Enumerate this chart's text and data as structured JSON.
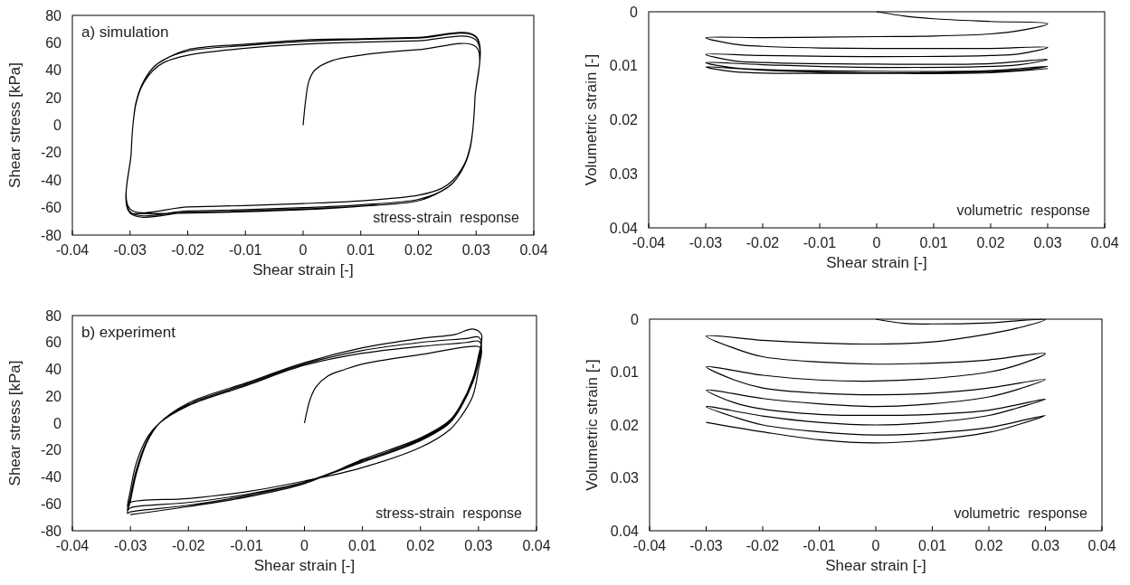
{
  "chart_data": [
    {
      "type": "line",
      "xlabel": "Shear strain [-]",
      "ylabel": "Shear stress [kPa]",
      "annotations": [
        "a) simulation",
        "stress-strain  response"
      ],
      "xlim": [
        -0.04,
        0.04
      ],
      "xticks": [
        -0.04,
        -0.03,
        -0.02,
        -0.01,
        0,
        0.01,
        0.02,
        0.03,
        0.04
      ],
      "ylim": [
        -80,
        80
      ],
      "yticks": [
        -80,
        -60,
        -40,
        -20,
        0,
        20,
        40,
        60,
        80
      ],
      "series": [
        {
          "color": "#000000",
          "x": [
            0,
            0.0005,
            0.001,
            0.002,
            0.005,
            0.01,
            0.02,
            0.03,
            0.0298,
            0.0295,
            0.029,
            0.028,
            0.026,
            0.024,
            0.02,
            0.01,
            0,
            -0.01,
            -0.02,
            -0.03,
            -0.0298,
            -0.0295,
            -0.029,
            -0.028,
            -0.026,
            -0.024,
            -0.02,
            -0.01,
            0,
            0.01,
            0.02,
            0.03,
            0.0298,
            0.0295,
            0.029,
            0.028,
            0.026,
            0.024,
            0.02,
            0.01,
            0,
            -0.01,
            -0.02,
            -0.03,
            -0.0298,
            -0.0295,
            -0.029,
            -0.028,
            -0.026,
            -0.024,
            -0.02,
            -0.01,
            0,
            0.01,
            0.02,
            0.03,
            0.0298,
            0.0295,
            0.029,
            0.028,
            0.026,
            0.024,
            0.02,
            0.01,
            0,
            -0.01,
            -0.02,
            -0.03,
            -0.0298,
            -0.0295,
            -0.029,
            -0.028,
            -0.026,
            -0.024,
            -0.02,
            -0.01,
            0,
            0.01,
            0.02,
            0.03,
            0.0298,
            0.0295,
            0.029,
            0.028,
            0.026,
            0.024,
            0.02,
            0.01,
            0,
            -0.01,
            -0.02,
            -0.03
          ],
          "values": [
            0,
            20,
            32,
            40,
            47,
            51,
            55,
            57,
            20,
            0,
            -15,
            -28,
            -40,
            -46,
            -51,
            -55,
            -57,
            -58.5,
            -59.5,
            -61,
            -20,
            0,
            15,
            28,
            40,
            46,
            51,
            56,
            59,
            60.5,
            61.5,
            62,
            20,
            0,
            -16,
            -29,
            -42,
            -48,
            -54,
            -58,
            -60,
            -61.5,
            -62.5,
            -63,
            -20,
            0,
            16,
            29,
            42,
            48,
            54,
            58,
            61,
            62.5,
            63.5,
            64,
            20,
            0,
            -16,
            -29,
            -42,
            -48,
            -55,
            -59,
            -61,
            -62.5,
            -63.5,
            -64,
            -20,
            0,
            16,
            29,
            42,
            48,
            55,
            59,
            62,
            63,
            64,
            64.5,
            20,
            0,
            -16,
            -29,
            -42,
            -48,
            -55,
            -59,
            -61.5,
            -63,
            -64,
            -64.5
          ]
        }
      ]
    },
    {
      "type": "line",
      "xlabel": "Shear strain [-]",
      "ylabel": "Volumetric strain [-]",
      "annotations": [
        "volumetric  response"
      ],
      "xlim": [
        -0.04,
        0.04
      ],
      "xticks": [
        -0.04,
        -0.03,
        -0.02,
        -0.01,
        0,
        0.01,
        0.02,
        0.03,
        0.04
      ],
      "ylim": [
        0.04,
        0
      ],
      "yticks": [
        0,
        0.01,
        0.02,
        0.03,
        0.04
      ],
      "series": [
        {
          "color": "#000000",
          "x": [
            0,
            0.005,
            0.01,
            0.02,
            0.03,
            0.025,
            0.02,
            0.01,
            0,
            -0.01,
            -0.02,
            -0.03,
            -0.025,
            -0.02,
            -0.01,
            0,
            0.01,
            0.02,
            0.03,
            0.025,
            0.02,
            0,
            -0.02,
            -0.03,
            -0.025,
            -0.02,
            0,
            0.02,
            0.03,
            0.025,
            0,
            -0.02,
            -0.03,
            -0.025,
            0,
            0.02,
            0.03,
            0.025,
            0,
            -0.02,
            -0.03,
            -0.025,
            0,
            0.02,
            0.03
          ],
          "values": [
            0,
            0.0008,
            0.0013,
            0.0018,
            0.0022,
            0.0035,
            0.0041,
            0.0045,
            0.0046,
            0.0047,
            0.0048,
            0.0048,
            0.006,
            0.0064,
            0.0067,
            0.0068,
            0.0068,
            0.0068,
            0.0066,
            0.0078,
            0.0081,
            0.0083,
            0.0081,
            0.0079,
            0.0091,
            0.0094,
            0.0097,
            0.0096,
            0.0088,
            0.0098,
            0.0103,
            0.0098,
            0.0094,
            0.0104,
            0.011,
            0.0109,
            0.0101,
            0.0108,
            0.0113,
            0.0108,
            0.0102,
            0.0111,
            0.0114,
            0.0113,
            0.0105
          ]
        }
      ]
    },
    {
      "type": "line",
      "xlabel": "Shear strain [-]",
      "ylabel": "Shear stress [kPa]",
      "annotations": [
        "b) experiment",
        "stress-strain  response"
      ],
      "xlim": [
        -0.04,
        0.04
      ],
      "xticks": [
        -0.04,
        -0.03,
        -0.02,
        -0.01,
        0,
        0.01,
        0.02,
        0.03,
        0.04
      ],
      "ylim": [
        -80,
        80
      ],
      "yticks": [
        -80,
        -60,
        -40,
        -20,
        0,
        20,
        40,
        60,
        80
      ],
      "series": [
        {
          "color": "#000000",
          "x": [
            0,
            0.0005,
            0.001,
            0.002,
            0.004,
            0.007,
            0.01,
            0.02,
            0.03,
            0.0305,
            0.03,
            0.029,
            0.027,
            0.025,
            0.02,
            0.01,
            0,
            -0.01,
            -0.02,
            -0.03,
            -0.0305,
            -0.03,
            -0.029,
            -0.027,
            -0.025,
            -0.02,
            -0.01,
            0,
            0.01,
            0.02,
            0.028,
            0.03,
            0.0305,
            0.03,
            0.029,
            0.027,
            0.025,
            0.02,
            0.01,
            0,
            -0.01,
            -0.02,
            -0.03,
            -0.0305,
            -0.03,
            -0.029,
            -0.027,
            -0.025,
            -0.02,
            -0.01,
            0,
            0.01,
            0.02,
            0.028,
            0.03,
            0.0305,
            0.03,
            0.029,
            0.027,
            0.025,
            0.02,
            0.01,
            0,
            -0.01,
            -0.02,
            -0.03,
            -0.0305,
            -0.03,
            -0.029,
            -0.027,
            -0.025,
            -0.02,
            -0.01,
            0,
            0.01,
            0.02,
            0.026,
            0.029,
            0.0305,
            0.03,
            0.029,
            0.027,
            0.025,
            0.02,
            0.01,
            0,
            -0.01,
            -0.02,
            -0.03
          ],
          "values": [
            0,
            10,
            18,
            27,
            35,
            40,
            44,
            51,
            57,
            55,
            40,
            20,
            5,
            -5,
            -18,
            -33,
            -43,
            -51,
            -56,
            -59,
            -62,
            -50,
            -30,
            -10,
            0,
            13,
            28,
            43,
            52,
            57,
            60,
            61,
            58,
            45,
            30,
            12,
            0,
            -13,
            -29,
            -44,
            -53,
            -59,
            -63,
            -65,
            -55,
            -35,
            -12,
            0,
            14,
            29,
            44,
            54,
            60,
            63,
            64,
            60,
            48,
            32,
            13,
            1,
            -12,
            -28,
            -44,
            -54,
            -61,
            -66,
            -67,
            -58,
            -38,
            -13,
            0,
            15,
            30,
            45,
            56,
            63,
            66,
            70,
            66,
            50,
            33,
            14,
            2,
            -11,
            -27,
            -45,
            -55,
            -62,
            -68
          ]
        }
      ]
    },
    {
      "type": "line",
      "xlabel": "Shear strain [-]",
      "ylabel": "Volumetric strain [-]",
      "annotations": [
        "volumetric  response"
      ],
      "xlim": [
        -0.04,
        0.04
      ],
      "xticks": [
        -0.04,
        -0.03,
        -0.02,
        -0.01,
        0,
        0.01,
        0.02,
        0.03,
        0.04
      ],
      "ylim": [
        0.04,
        0
      ],
      "yticks": [
        0,
        0.01,
        0.02,
        0.03,
        0.04
      ],
      "series": [
        {
          "color": "#000000",
          "x": [
            0,
            0.005,
            0.01,
            0.02,
            0.03,
            0.025,
            0.02,
            0.01,
            0,
            -0.01,
            -0.02,
            -0.03,
            -0.025,
            -0.02,
            -0.01,
            0,
            0.01,
            0.02,
            0.03,
            0.025,
            0.02,
            0.01,
            0,
            -0.01,
            -0.02,
            -0.03,
            -0.025,
            -0.02,
            -0.01,
            0,
            0.01,
            0.02,
            0.03,
            0.025,
            0.02,
            0.01,
            0,
            -0.01,
            -0.02,
            -0.03,
            -0.025,
            -0.02,
            -0.01,
            0,
            0.01,
            0.02,
            0.03,
            0.025,
            0.02,
            0.01,
            0,
            -0.01,
            -0.02,
            -0.03,
            -0.025,
            -0.02,
            -0.01,
            0,
            0.01,
            0.02,
            0.03,
            0.025,
            0.02,
            0.01,
            0,
            -0.01,
            -0.02,
            -0.03
          ],
          "values": [
            0,
            0.0008,
            0.0009,
            0.0007,
            0.0001,
            0.0017,
            0.0028,
            0.0043,
            0.0047,
            0.0045,
            0.004,
            0.0032,
            0.0055,
            0.0071,
            0.0081,
            0.0085,
            0.0083,
            0.0077,
            0.0065,
            0.0087,
            0.01,
            0.0112,
            0.0117,
            0.0115,
            0.0106,
            0.009,
            0.0115,
            0.013,
            0.014,
            0.0143,
            0.014,
            0.013,
            0.0114,
            0.0133,
            0.0147,
            0.016,
            0.0165,
            0.016,
            0.015,
            0.0134,
            0.0158,
            0.017,
            0.018,
            0.0182,
            0.018,
            0.0172,
            0.0151,
            0.0168,
            0.0182,
            0.0195,
            0.02,
            0.0195,
            0.0183,
            0.0165,
            0.0185,
            0.02,
            0.0213,
            0.0219,
            0.0215,
            0.0205,
            0.0182,
            0.02,
            0.0214,
            0.0228,
            0.0234,
            0.0228,
            0.0213,
            0.0195
          ]
        }
      ]
    }
  ]
}
